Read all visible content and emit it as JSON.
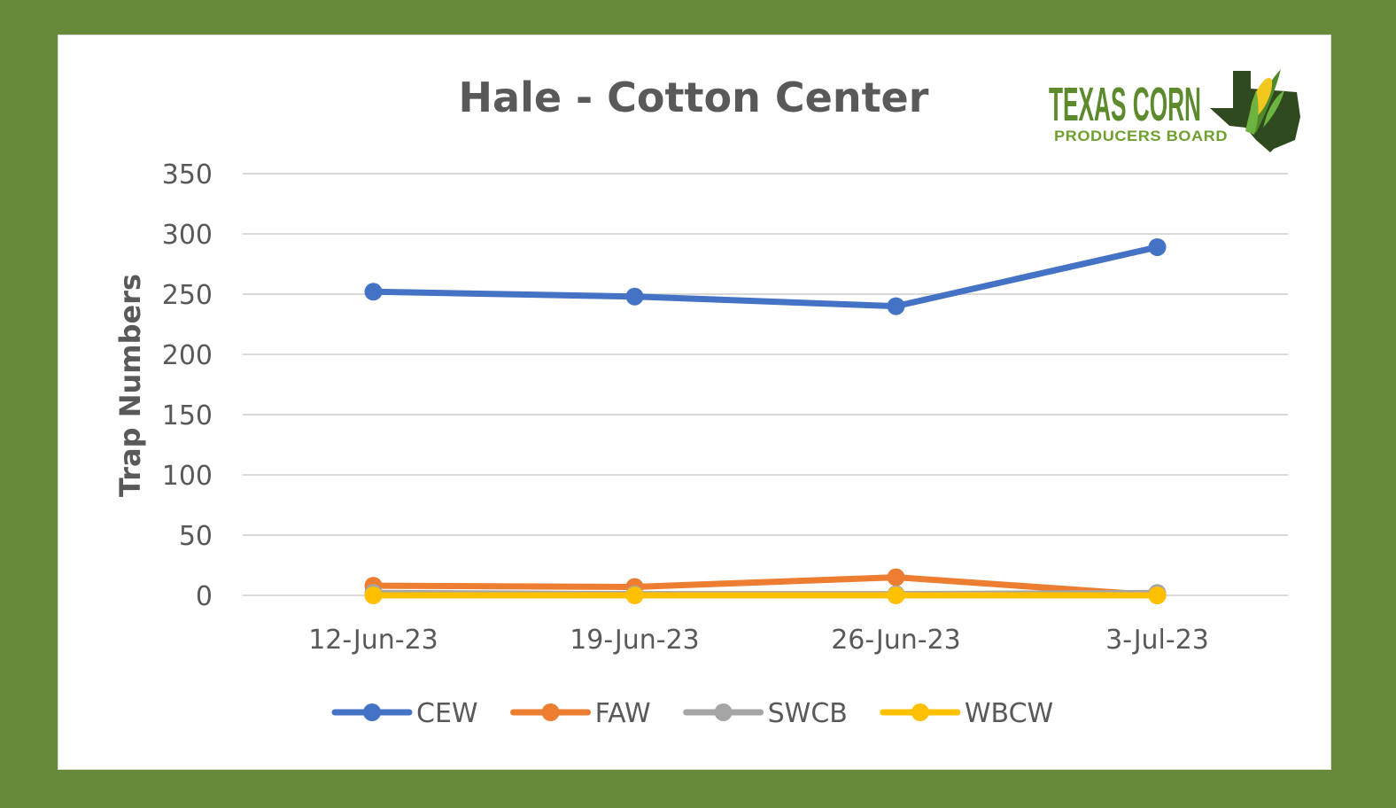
{
  "logo": {
    "line1": "TEXAS CORN",
    "line2": "PRODUCERS BOARD",
    "colors": {
      "green": "#5c8a2c",
      "dark": "#2f4a1e",
      "corn": "#f2c81e"
    }
  },
  "chart_data": {
    "type": "line",
    "title": "Hale - Cotton Center",
    "xlabel": "",
    "ylabel": "Trap Numbers",
    "categories": [
      "12-Jun-23",
      "19-Jun-23",
      "26-Jun-23",
      "3-Jul-23"
    ],
    "ylim": [
      0,
      350
    ],
    "yticks": [
      0,
      50,
      100,
      150,
      200,
      250,
      300,
      350
    ],
    "grid": true,
    "legend_position": "bottom",
    "series": [
      {
        "name": "CEW",
        "color": "#4472c4",
        "values": [
          252,
          248,
          240,
          289
        ]
      },
      {
        "name": "FAW",
        "color": "#ed7d31",
        "values": [
          8,
          7,
          15,
          0
        ]
      },
      {
        "name": "SWCB",
        "color": "#a5a5a5",
        "values": [
          2,
          1,
          1,
          2
        ]
      },
      {
        "name": "WBCW",
        "color": "#ffc000",
        "values": [
          0,
          0,
          0,
          0
        ]
      }
    ]
  }
}
